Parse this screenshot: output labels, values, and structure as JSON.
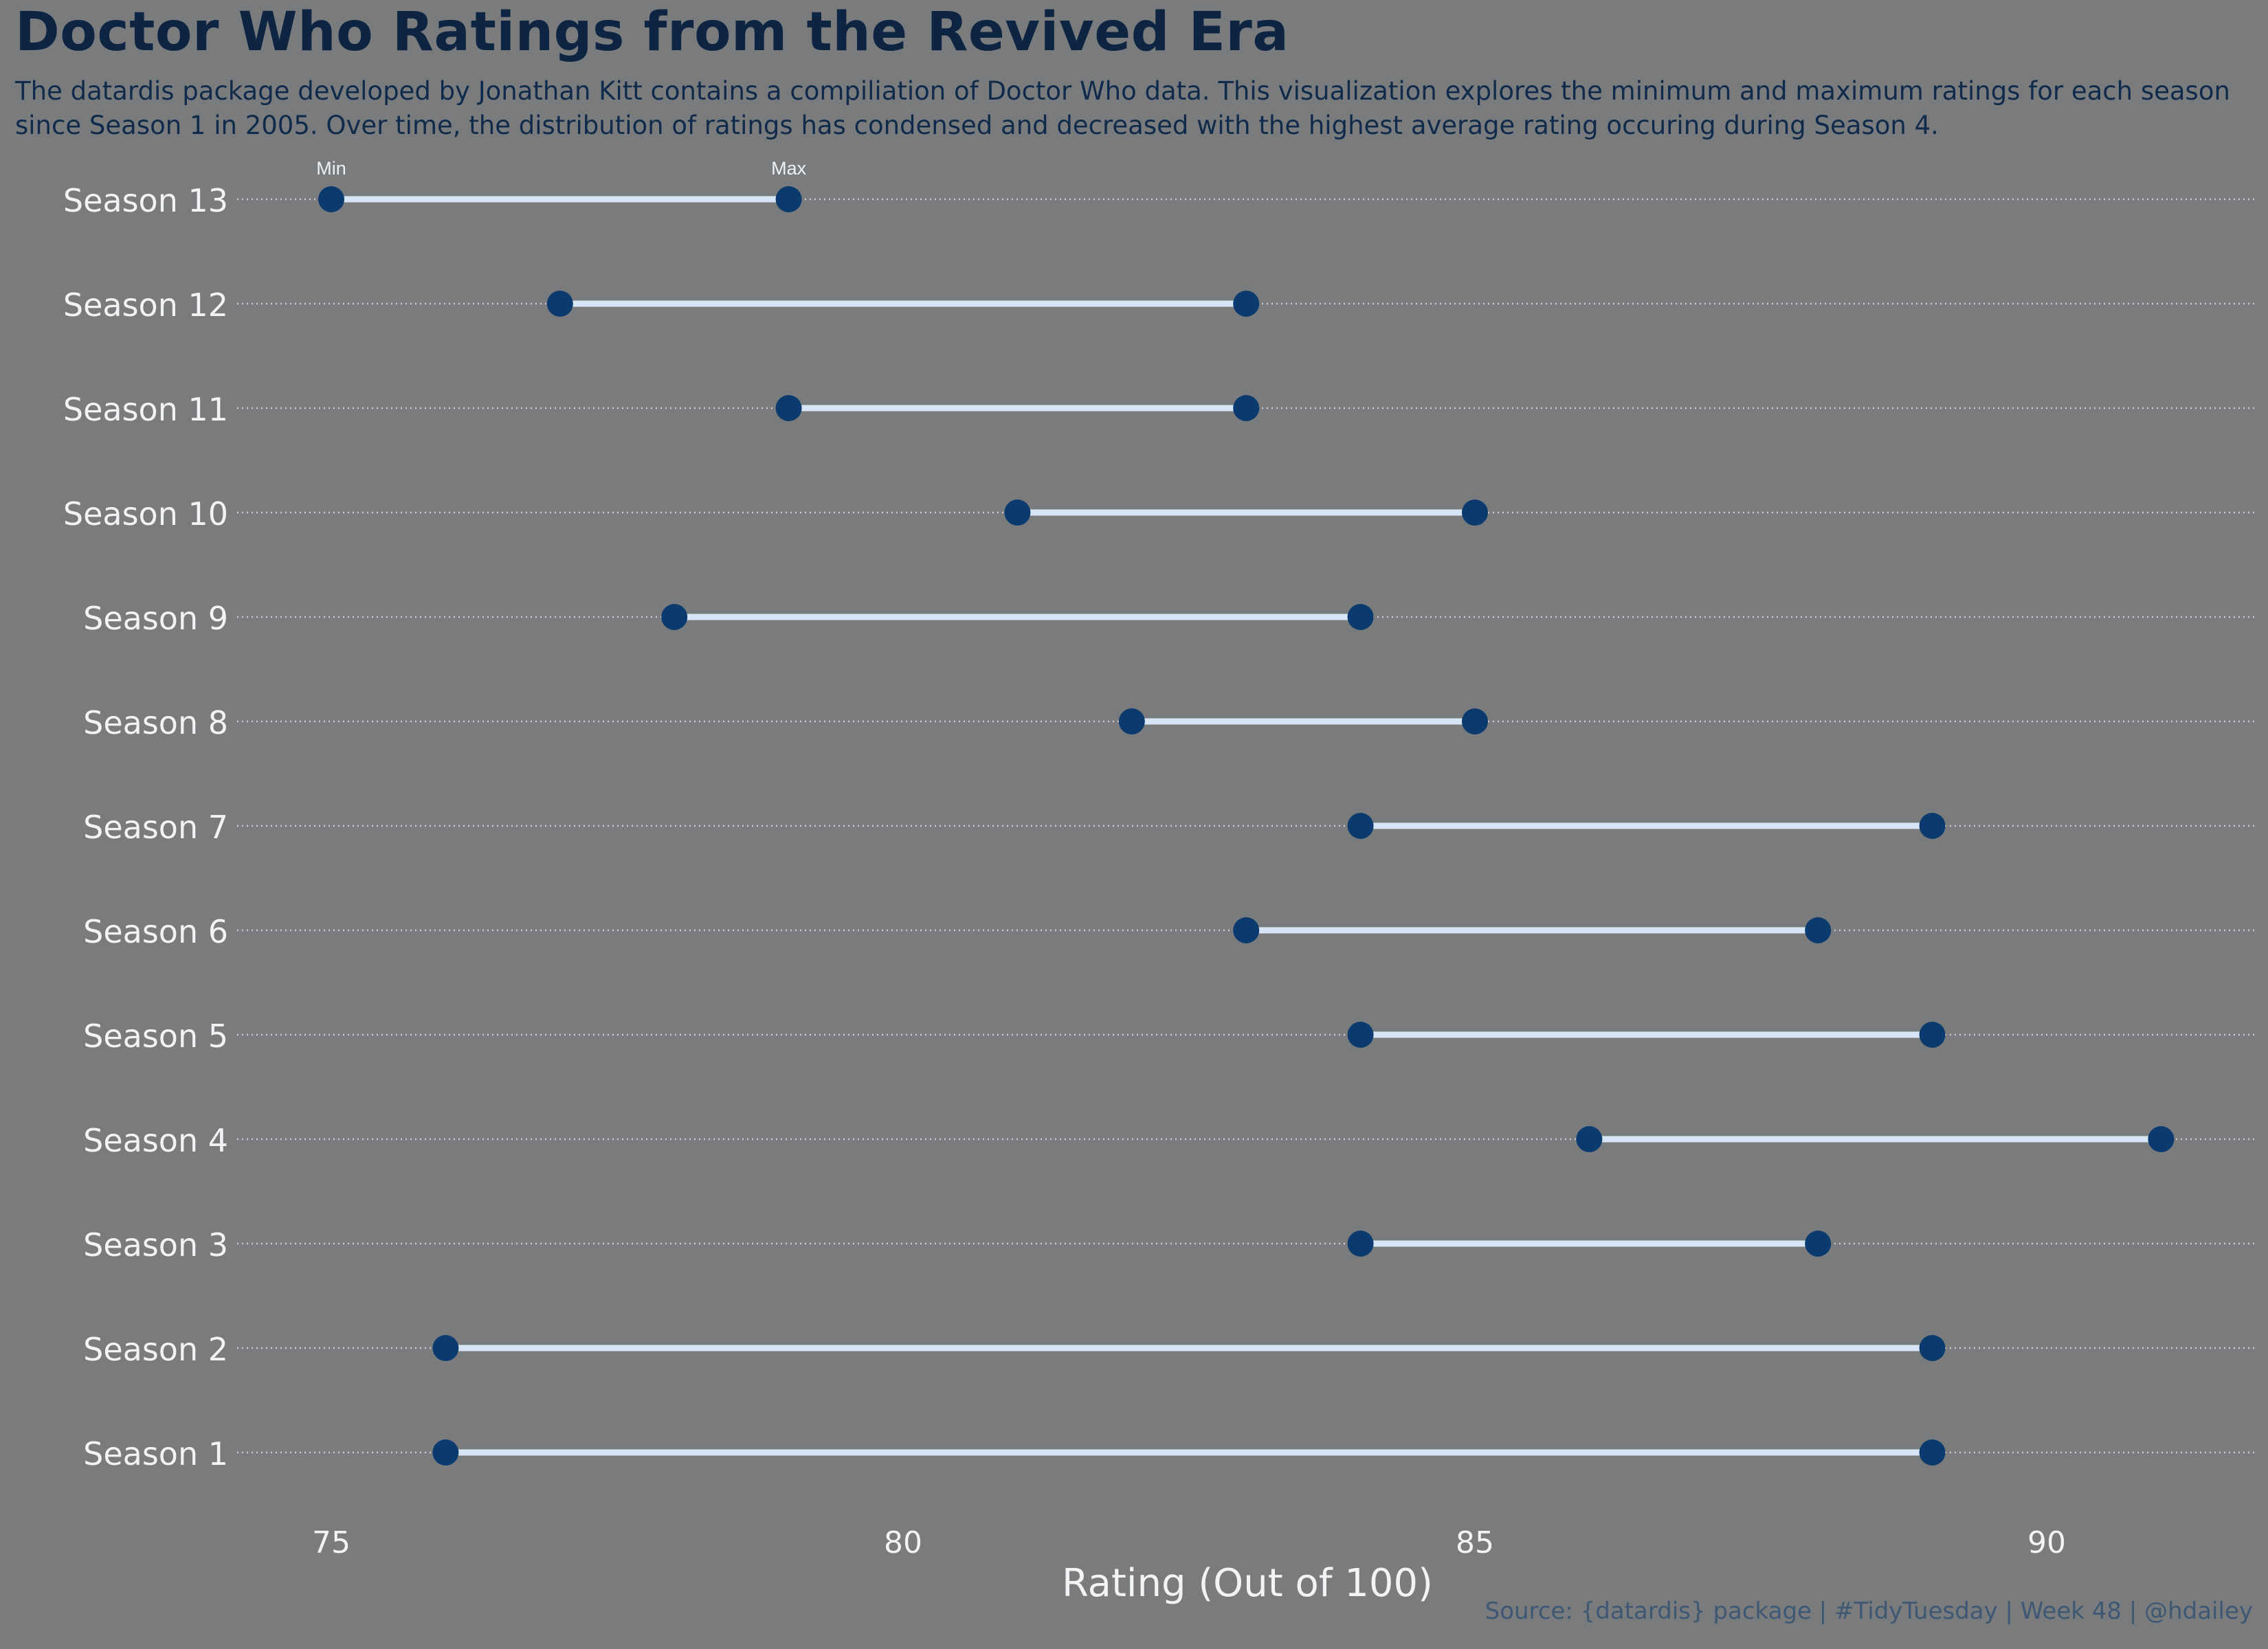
{
  "title": "Doctor Who Ratings from the Revived Era",
  "subtitle": "The datardis package developed by Jonathan Kitt contains a compiliation of Doctor Who data. This visualization explores the minimum and maximum ratings for each season since Season 1 in 2005. Over time, the distribution of ratings has condensed and decreased with the highest average rating occuring during Season 4.",
  "caption": "Source: {datardis} package | #TidyTuesday | Week 48 | @hdailey",
  "colors": {
    "background": "#797b7d",
    "point": "#0b3a6e",
    "segment": "#d6e6f5",
    "text_light": "#f1f3f5",
    "grid": "#c9ccd0"
  },
  "chart_data": {
    "type": "dumbbell",
    "xlabel": "Rating (Out of 100)",
    "ylabel": "",
    "xlim": [
      74.2,
      91.8
    ],
    "xticks": [
      75,
      80,
      85,
      90
    ],
    "grid": "horizontal dotted",
    "annotations": {
      "min_label": "Min",
      "max_label": "Max"
    },
    "categories": [
      "Season 13",
      "Season 12",
      "Season 11",
      "Season 10",
      "Season 9",
      "Season 8",
      "Season 7",
      "Season 6",
      "Season 5",
      "Season 4",
      "Season 3",
      "Season 2",
      "Season 1"
    ],
    "series": [
      {
        "name": "Min",
        "values": [
          75,
          77,
          79,
          81,
          78,
          82,
          84,
          83,
          84,
          86,
          84,
          76,
          76
        ]
      },
      {
        "name": "Max",
        "values": [
          79,
          83,
          83,
          85,
          84,
          85,
          89,
          88,
          89,
          91,
          88,
          89,
          89
        ]
      }
    ]
  }
}
